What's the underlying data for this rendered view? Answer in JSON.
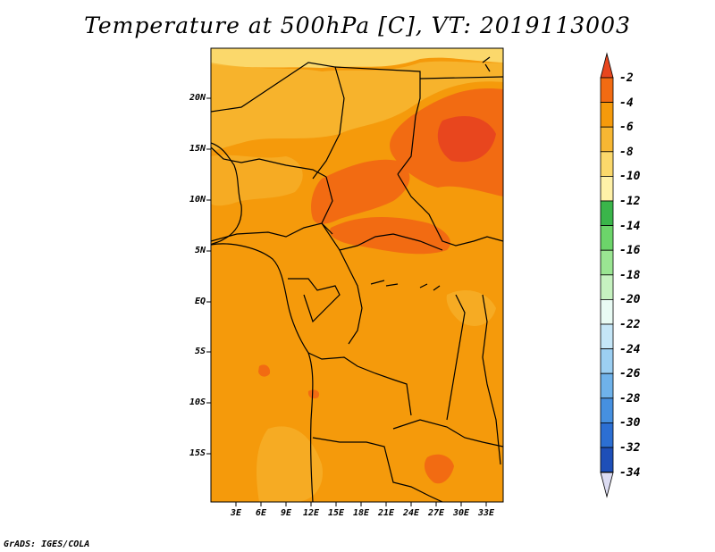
{
  "title": "Temperature at 500hPa [C], VT: 2019113003",
  "credit": "GrADS: IGES/COLA",
  "map": {
    "lat_labels": [
      "20N",
      "15N",
      "10N",
      "5N",
      "EQ",
      "5S",
      "10S",
      "15S"
    ],
    "lon_labels": [
      "3E",
      "6E",
      "9E",
      "12E",
      "15E",
      "18E",
      "21E",
      "24E",
      "27E",
      "30E",
      "33E"
    ]
  },
  "colorbar": {
    "labels": [
      "-2",
      "-4",
      "-6",
      "-8",
      "-10",
      "-12",
      "-14",
      "-16",
      "-18",
      "-20",
      "-22",
      "-24",
      "-26",
      "-28",
      "-30",
      "-32",
      "-34"
    ],
    "colors": [
      "#e8461e",
      "#f26b12",
      "#f59a0b",
      "#f7b733",
      "#fbd86b",
      "#fff1a8",
      "#3ab54a",
      "#6cd46a",
      "#9ae592",
      "#c6f2c0",
      "#e9fbf4",
      "#c5e6f7",
      "#9ccff2",
      "#6fb2ea",
      "#4690e0",
      "#2c6fd3",
      "#1e4fb8",
      "#0c2180",
      "#dcdcf2"
    ]
  }
}
